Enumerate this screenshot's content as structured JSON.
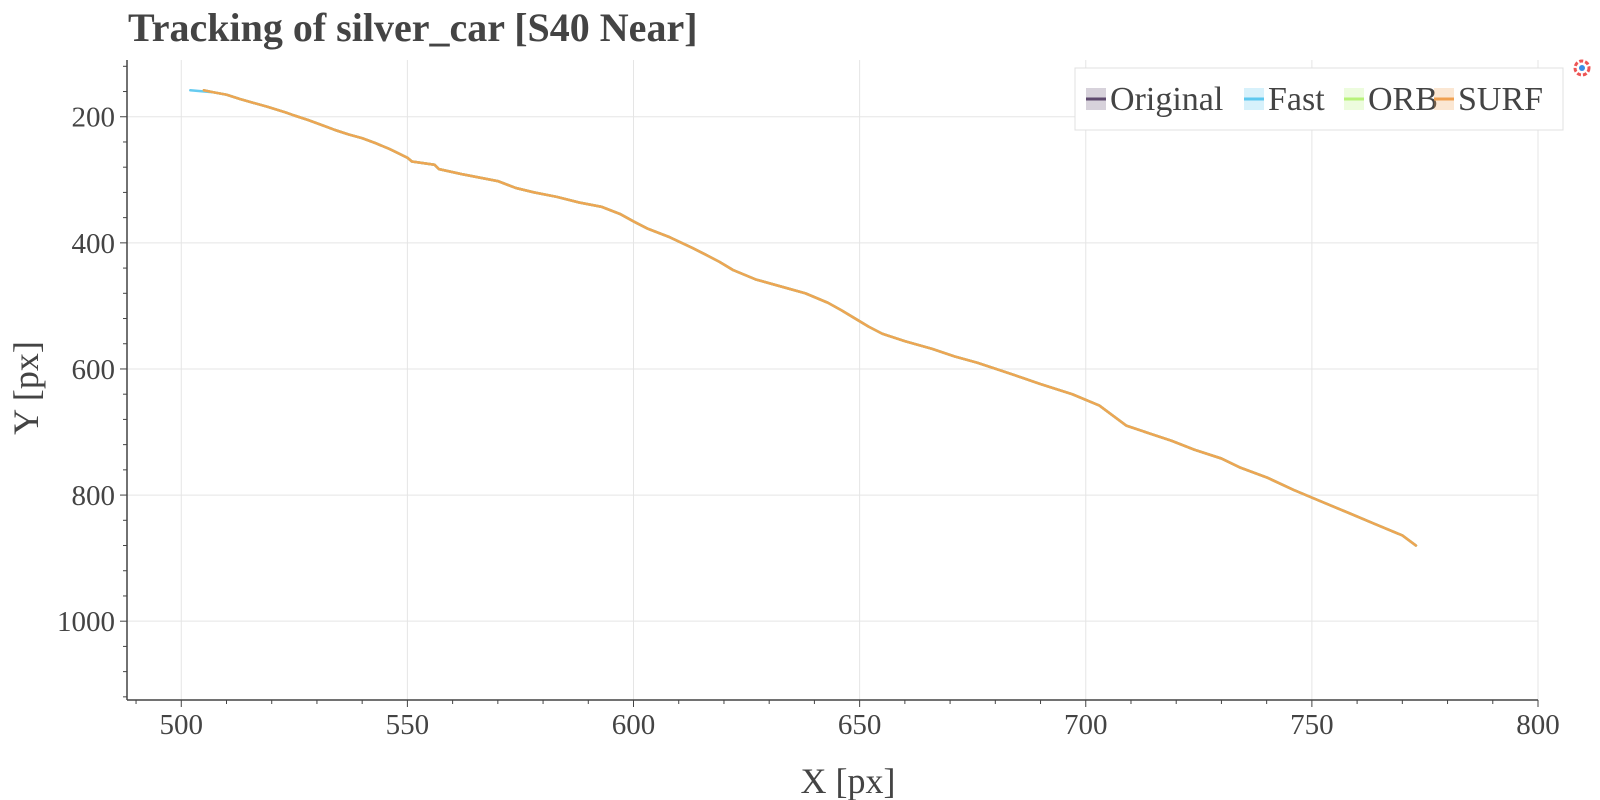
{
  "chart_data": {
    "type": "line",
    "title": "Tracking of silver_car [S40 Near]",
    "xlabel": "X [px]",
    "ylabel": "Y [px]",
    "xlim": [
      488,
      800
    ],
    "ylim": [
      1125,
      110
    ],
    "y_inverted": true,
    "grid": true,
    "x_ticks": [
      500,
      550,
      600,
      650,
      700,
      750,
      800
    ],
    "y_ticks": [
      200,
      400,
      600,
      800,
      1000
    ],
    "legend_position": "top-right",
    "series": [
      {
        "name": "Original",
        "color": "#5e4a6e",
        "points": [
          [
            505,
            158
          ],
          [
            507,
            161
          ],
          [
            510,
            165
          ],
          [
            513,
            172
          ],
          [
            516,
            178
          ],
          [
            519,
            184
          ],
          [
            523,
            193
          ],
          [
            525,
            198
          ],
          [
            528,
            205
          ],
          [
            531,
            213
          ],
          [
            534,
            221
          ],
          [
            537,
            228
          ],
          [
            540,
            234
          ],
          [
            543,
            242
          ],
          [
            546,
            251
          ],
          [
            548,
            258
          ],
          [
            550,
            265
          ],
          [
            551,
            271
          ],
          [
            556,
            276
          ],
          [
            557,
            283
          ],
          [
            562,
            291
          ],
          [
            567,
            298
          ],
          [
            570,
            302
          ],
          [
            574,
            313
          ],
          [
            578,
            320
          ],
          [
            583,
            327
          ],
          [
            588,
            336
          ],
          [
            593,
            343
          ],
          [
            597,
            354
          ],
          [
            600,
            366
          ],
          [
            603,
            377
          ],
          [
            608,
            391
          ],
          [
            613,
            408
          ],
          [
            616,
            419
          ],
          [
            619,
            430
          ],
          [
            622,
            443
          ],
          [
            627,
            458
          ],
          [
            633,
            470
          ],
          [
            638,
            480
          ],
          [
            643,
            495
          ],
          [
            646,
            507
          ],
          [
            649,
            520
          ],
          [
            652,
            533
          ],
          [
            655,
            544
          ],
          [
            660,
            556
          ],
          [
            666,
            568
          ],
          [
            671,
            580
          ],
          [
            676,
            590
          ],
          [
            681,
            602
          ],
          [
            686,
            614
          ],
          [
            690,
            624
          ],
          [
            697,
            640
          ],
          [
            703,
            658
          ],
          [
            706,
            674
          ],
          [
            709,
            690
          ],
          [
            714,
            702
          ],
          [
            719,
            714
          ],
          [
            724,
            728
          ],
          [
            730,
            742
          ],
          [
            734,
            756
          ],
          [
            740,
            772
          ],
          [
            746,
            792
          ],
          [
            752,
            810
          ],
          [
            758,
            828
          ],
          [
            764,
            846
          ],
          [
            770,
            864
          ],
          [
            773,
            880
          ]
        ]
      },
      {
        "name": "Fast",
        "color": "#5ec8ef",
        "points": [
          [
            502,
            158
          ],
          [
            507,
            161
          ],
          [
            510,
            165
          ],
          [
            513,
            172
          ],
          [
            516,
            178
          ],
          [
            519,
            184
          ],
          [
            523,
            193
          ],
          [
            525,
            198
          ],
          [
            528,
            205
          ],
          [
            531,
            213
          ],
          [
            534,
            221
          ],
          [
            537,
            228
          ],
          [
            540,
            234
          ],
          [
            543,
            242
          ],
          [
            546,
            251
          ],
          [
            548,
            258
          ],
          [
            550,
            265
          ],
          [
            551,
            271
          ],
          [
            556,
            276
          ],
          [
            557,
            283
          ],
          [
            562,
            291
          ],
          [
            567,
            298
          ],
          [
            570,
            302
          ],
          [
            574,
            313
          ],
          [
            578,
            320
          ],
          [
            583,
            327
          ],
          [
            588,
            336
          ],
          [
            593,
            343
          ],
          [
            597,
            354
          ],
          [
            600,
            366
          ],
          [
            603,
            377
          ],
          [
            608,
            391
          ],
          [
            613,
            408
          ],
          [
            616,
            419
          ],
          [
            619,
            430
          ],
          [
            622,
            443
          ],
          [
            627,
            458
          ],
          [
            633,
            470
          ],
          [
            638,
            480
          ],
          [
            643,
            495
          ],
          [
            646,
            507
          ],
          [
            649,
            520
          ],
          [
            652,
            533
          ],
          [
            655,
            544
          ],
          [
            660,
            556
          ],
          [
            666,
            568
          ],
          [
            671,
            580
          ],
          [
            676,
            590
          ],
          [
            681,
            602
          ],
          [
            686,
            614
          ],
          [
            690,
            624
          ],
          [
            697,
            640
          ],
          [
            703,
            658
          ],
          [
            706,
            674
          ],
          [
            709,
            690
          ],
          [
            714,
            702
          ],
          [
            719,
            714
          ],
          [
            724,
            728
          ],
          [
            730,
            742
          ],
          [
            734,
            756
          ],
          [
            740,
            772
          ],
          [
            746,
            792
          ],
          [
            752,
            810
          ],
          [
            758,
            828
          ],
          [
            764,
            846
          ],
          [
            770,
            864
          ],
          [
            773,
            880
          ]
        ]
      },
      {
        "name": "ORB",
        "color": "#b8f27a",
        "points": [
          [
            505,
            158
          ],
          [
            507,
            161
          ],
          [
            510,
            165
          ],
          [
            513,
            172
          ],
          [
            516,
            178
          ],
          [
            519,
            184
          ],
          [
            523,
            193
          ],
          [
            525,
            198
          ],
          [
            528,
            205
          ],
          [
            531,
            213
          ],
          [
            534,
            221
          ],
          [
            537,
            228
          ],
          [
            540,
            234
          ],
          [
            543,
            242
          ],
          [
            546,
            251
          ],
          [
            548,
            258
          ],
          [
            550,
            265
          ],
          [
            551,
            271
          ],
          [
            556,
            276
          ],
          [
            557,
            283
          ],
          [
            562,
            291
          ],
          [
            567,
            298
          ],
          [
            570,
            302
          ],
          [
            574,
            313
          ],
          [
            578,
            320
          ],
          [
            583,
            327
          ],
          [
            588,
            336
          ],
          [
            593,
            343
          ],
          [
            597,
            354
          ],
          [
            600,
            366
          ],
          [
            603,
            377
          ],
          [
            608,
            391
          ],
          [
            613,
            408
          ],
          [
            616,
            419
          ],
          [
            619,
            430
          ],
          [
            622,
            443
          ],
          [
            627,
            458
          ],
          [
            633,
            470
          ],
          [
            638,
            480
          ],
          [
            643,
            495
          ],
          [
            646,
            507
          ],
          [
            649,
            520
          ],
          [
            652,
            533
          ],
          [
            655,
            544
          ],
          [
            660,
            556
          ],
          [
            666,
            568
          ],
          [
            671,
            580
          ],
          [
            676,
            590
          ],
          [
            681,
            602
          ],
          [
            686,
            614
          ],
          [
            690,
            624
          ],
          [
            697,
            640
          ],
          [
            703,
            658
          ],
          [
            706,
            674
          ],
          [
            709,
            690
          ],
          [
            714,
            702
          ],
          [
            719,
            714
          ],
          [
            724,
            728
          ],
          [
            730,
            742
          ],
          [
            734,
            756
          ],
          [
            740,
            772
          ],
          [
            746,
            792
          ],
          [
            752,
            810
          ],
          [
            758,
            828
          ],
          [
            764,
            846
          ],
          [
            770,
            864
          ],
          [
            773,
            880
          ]
        ]
      },
      {
        "name": "SURF",
        "color": "#f0a050",
        "points": [
          [
            505,
            158
          ],
          [
            507,
            161
          ],
          [
            510,
            165
          ],
          [
            513,
            172
          ],
          [
            516,
            178
          ],
          [
            519,
            184
          ],
          [
            523,
            193
          ],
          [
            525,
            198
          ],
          [
            528,
            205
          ],
          [
            531,
            213
          ],
          [
            534,
            221
          ],
          [
            537,
            228
          ],
          [
            540,
            234
          ],
          [
            543,
            242
          ],
          [
            546,
            251
          ],
          [
            548,
            258
          ],
          [
            550,
            265
          ],
          [
            551,
            271
          ],
          [
            556,
            276
          ],
          [
            557,
            283
          ],
          [
            562,
            291
          ],
          [
            567,
            298
          ],
          [
            570,
            302
          ],
          [
            574,
            313
          ],
          [
            578,
            320
          ],
          [
            583,
            327
          ],
          [
            588,
            336
          ],
          [
            593,
            343
          ],
          [
            597,
            354
          ],
          [
            600,
            366
          ],
          [
            603,
            377
          ],
          [
            608,
            391
          ],
          [
            613,
            408
          ],
          [
            616,
            419
          ],
          [
            619,
            430
          ],
          [
            622,
            443
          ],
          [
            627,
            458
          ],
          [
            633,
            470
          ],
          [
            638,
            480
          ],
          [
            643,
            495
          ],
          [
            646,
            507
          ],
          [
            649,
            520
          ],
          [
            652,
            533
          ],
          [
            655,
            544
          ],
          [
            660,
            556
          ],
          [
            666,
            568
          ],
          [
            671,
            580
          ],
          [
            676,
            590
          ],
          [
            681,
            602
          ],
          [
            686,
            614
          ],
          [
            690,
            624
          ],
          [
            697,
            640
          ],
          [
            703,
            658
          ],
          [
            706,
            674
          ],
          [
            709,
            690
          ],
          [
            714,
            702
          ],
          [
            719,
            714
          ],
          [
            724,
            728
          ],
          [
            730,
            742
          ],
          [
            734,
            756
          ],
          [
            740,
            772
          ],
          [
            746,
            792
          ],
          [
            752,
            810
          ],
          [
            758,
            828
          ],
          [
            764,
            846
          ],
          [
            770,
            864
          ],
          [
            773,
            880
          ]
        ]
      }
    ]
  },
  "toolbar": {
    "logo_icon": "bokeh-logo-icon"
  }
}
